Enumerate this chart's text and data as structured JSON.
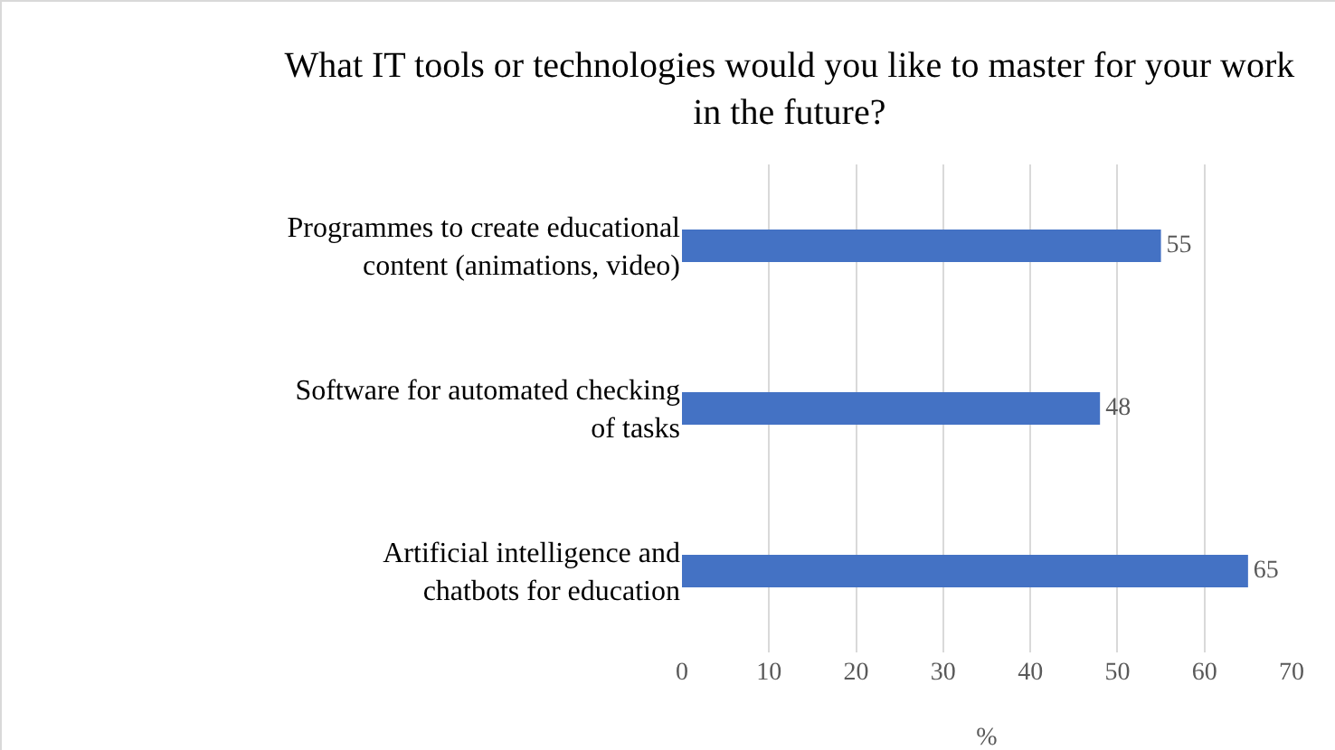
{
  "chart_data": {
    "type": "bar",
    "orientation": "horizontal",
    "title": "What IT tools or technologies would you like to master for your work in the future?",
    "categories": [
      "Programmes to create educational content (animations, video)",
      "Software for automated checking of tasks",
      "Artificial intelligence and chatbots for education"
    ],
    "values": [
      55,
      48,
      65
    ],
    "color": "#4472c4",
    "xlabel": "%",
    "xlim": [
      0,
      70
    ],
    "xticks": [
      0,
      10,
      20,
      30,
      40,
      50,
      60,
      70
    ],
    "grid": "x",
    "data_labels": true
  }
}
